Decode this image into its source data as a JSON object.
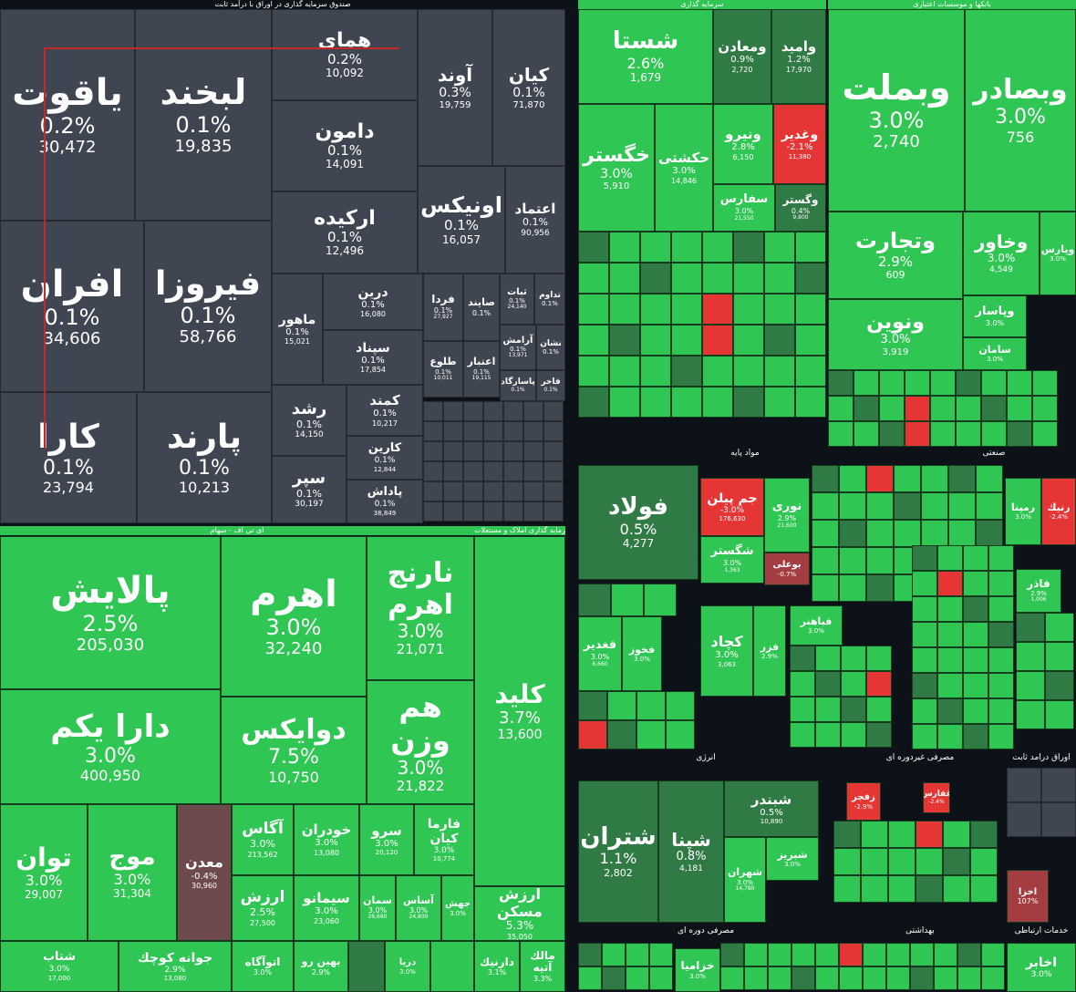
{
  "headers": {
    "fixed_income_fund": "صندوق سرمایه گذاری در اوراق با درآمد ثابت",
    "investment": "سرمایه گذاری",
    "banks": "بانکها و موسسات اعتباری",
    "etf": "ای تی اف - سهام",
    "housing_fund": "صندوق سرمایه گذاری املاک و مستغلات",
    "basic_materials": "مواد پایه",
    "industrial": "صنعتی",
    "energy": "انرژی",
    "durable_consumer": "مصرفی دوره ای",
    "nondurable_consumer": "مصرفی غیردوره ای",
    "health": "بهداشتی",
    "fixed_bonds": "اوراق درآمد ثابت",
    "telecom": "خدمات ارتباطی"
  },
  "tiles_left": [
    {
      "name": "ياقوت",
      "pct": "0.2%",
      "vol": "30,472"
    },
    {
      "name": "لبخند",
      "pct": "0.1%",
      "vol": "19,835"
    },
    {
      "name": "همای",
      "pct": "0.2%",
      "vol": "10,092"
    },
    {
      "name": "آوند",
      "pct": "0.3%",
      "vol": "19,759"
    },
    {
      "name": "كيان",
      "pct": "0.1%",
      "vol": "71,870"
    },
    {
      "name": "دامون",
      "pct": "0.1%",
      "vol": "14,091"
    },
    {
      "name": "اونيكس",
      "pct": "0.1%",
      "vol": "16,057"
    },
    {
      "name": "اعتماد",
      "pct": "0.1%",
      "vol": "90,956"
    },
    {
      "name": "اركيده",
      "pct": "0.1%",
      "vol": "12,496"
    },
    {
      "name": "افران",
      "pct": "0.1%",
      "vol": "34,606"
    },
    {
      "name": "فيروزا",
      "pct": "0.1%",
      "vol": "58,766"
    },
    {
      "name": "ماهور",
      "pct": "0.1%",
      "vol": "15,021"
    },
    {
      "name": "درين",
      "pct": "0.1%",
      "vol": "16,080"
    },
    {
      "name": "سپناد",
      "pct": "0.1%",
      "vol": "17,854"
    },
    {
      "name": "كارا",
      "pct": "0.1%",
      "vol": "23,794"
    },
    {
      "name": "پارند",
      "pct": "0.1%",
      "vol": "10,213"
    },
    {
      "name": "رشد",
      "pct": "0.1%",
      "vol": "14,150"
    },
    {
      "name": "كمند",
      "pct": "0.1%",
      "vol": "10,217"
    },
    {
      "name": "سپر",
      "pct": "0.1%",
      "vol": "30,197"
    },
    {
      "name": "كارين",
      "pct": "0.1%",
      "vol": "12,844"
    },
    {
      "name": "پاداش",
      "pct": "0.1%",
      "vol": "38,849"
    },
    {
      "name": "فردا",
      "pct": "0.1%",
      "vol": "27,927"
    },
    {
      "name": "صايند",
      "pct": "0.1%",
      "vol": ""
    },
    {
      "name": "ثبات",
      "pct": "0.1%",
      "vol": "24,140"
    },
    {
      "name": "تداوم",
      "pct": "0.1%",
      "vol": ""
    },
    {
      "name": "آرامش",
      "pct": "0.1%",
      "vol": "13,971"
    },
    {
      "name": "نشان",
      "pct": "0.1%",
      "vol": ""
    },
    {
      "name": "طلوع",
      "pct": "0.1%",
      "vol": "10,011"
    },
    {
      "name": "اعتبار",
      "pct": "0.1%",
      "vol": "19,115"
    },
    {
      "name": "پاسارگاد",
      "pct": "0.1%",
      "vol": ""
    },
    {
      "name": "فاخر",
      "pct": "0.1%",
      "vol": ""
    }
  ],
  "tiles_etf": [
    {
      "name": "پالايش",
      "pct": "2.5%",
      "vol": "205,030"
    },
    {
      "name": "اهرم",
      "pct": "3.0%",
      "vol": "32,240"
    },
    {
      "name": "نارنج اهرم",
      "pct": "3.0%",
      "vol": "21,071"
    },
    {
      "name": "كليد",
      "pct": "3.7%",
      "vol": "13,600"
    },
    {
      "name": "دارا يكم",
      "pct": "3.0%",
      "vol": "400,950"
    },
    {
      "name": "دوايكس",
      "pct": "7.5%",
      "vol": "10,750"
    },
    {
      "name": "هم وزن",
      "pct": "3.0%",
      "vol": "21,822"
    },
    {
      "name": "توان",
      "pct": "3.0%",
      "vol": "29,007"
    },
    {
      "name": "موج",
      "pct": "3.0%",
      "vol": "31,304"
    },
    {
      "name": "معدن",
      "pct": "-0.4%",
      "vol": "30,960"
    },
    {
      "name": "آگاس",
      "pct": "3.0%",
      "vol": "213,562"
    },
    {
      "name": "خودران",
      "pct": "3.0%",
      "vol": "13,080"
    },
    {
      "name": "سرو",
      "pct": "3.0%",
      "vol": "20,120"
    },
    {
      "name": "فارما كيان",
      "pct": "3.0%",
      "vol": "10,774"
    },
    {
      "name": "ارزش",
      "pct": "2.5%",
      "vol": "27,500"
    },
    {
      "name": "سيمانو",
      "pct": "3.0%",
      "vol": "23,060"
    },
    {
      "name": "سمان",
      "pct": "3.0%",
      "vol": "26,680"
    },
    {
      "name": "آساس",
      "pct": "3.0%",
      "vol": "24,800"
    },
    {
      "name": "جهش",
      "pct": "3.0%",
      "vol": ""
    },
    {
      "name": "ارزش مسكن",
      "pct": "5.3%",
      "vol": "35,050"
    },
    {
      "name": "شتاب",
      "pct": "3.0%",
      "vol": "17,000"
    },
    {
      "name": "جوانه كوچك",
      "pct": "2.9%",
      "vol": "13,080"
    },
    {
      "name": "اتوآگاه",
      "pct": "3.0%",
      "vol": ""
    },
    {
      "name": "بهين رو",
      "pct": "2.9%",
      "vol": ""
    },
    {
      "name": "دريا",
      "pct": "3.0%",
      "vol": ""
    },
    {
      "name": "دارنيك",
      "pct": "3.1%",
      "vol": ""
    },
    {
      "name": "مالك آتيه",
      "pct": "3.3%",
      "vol": ""
    }
  ],
  "tiles_right": [
    {
      "name": "شستا",
      "pct": "2.6%",
      "vol": "1,679"
    },
    {
      "name": "ومعادن",
      "pct": "0.9%",
      "vol": "2,720"
    },
    {
      "name": "واميد",
      "pct": "1.2%",
      "vol": "17,970"
    },
    {
      "name": "وبملت",
      "pct": "3.0%",
      "vol": "2,740"
    },
    {
      "name": "وبصادر",
      "pct": "3.0%",
      "vol": "756"
    },
    {
      "name": "خگستر",
      "pct": "3.0%",
      "vol": "5,910"
    },
    {
      "name": "حكشتى",
      "pct": "3.0%",
      "vol": "14,846"
    },
    {
      "name": "ونيرو",
      "pct": "2.8%",
      "vol": "6,150"
    },
    {
      "name": "وغدير",
      "pct": "-2.1%",
      "vol": "11,380"
    },
    {
      "name": "سفارس",
      "pct": "3.0%",
      "vol": "21,550"
    },
    {
      "name": "وگستر",
      "pct": "0.4%",
      "vol": "9,800"
    },
    {
      "name": "وتجارت",
      "pct": "2.9%",
      "vol": "609"
    },
    {
      "name": "وخاور",
      "pct": "3.0%",
      "vol": "4,549"
    },
    {
      "name": "وپارس",
      "pct": "3.0%",
      "vol": ""
    },
    {
      "name": "ونوين",
      "pct": "3.0%",
      "vol": "3,919"
    },
    {
      "name": "وپاسار",
      "pct": "3.0%",
      "vol": ""
    },
    {
      "name": "سامان",
      "pct": "3.0%",
      "vol": ""
    },
    {
      "name": "فولاد",
      "pct": "0.5%",
      "vol": "4,277"
    },
    {
      "name": "جم پيلن",
      "pct": "-3.0%",
      "vol": "176,630"
    },
    {
      "name": "نورى",
      "pct": "2.9%",
      "vol": "21,600"
    },
    {
      "name": "شگستر",
      "pct": "3.0%",
      "vol": "1,363"
    },
    {
      "name": "بوعلى",
      "pct": "-0.7%",
      "vol": ""
    },
    {
      "name": "رمپنا",
      "pct": "3.0%",
      "vol": ""
    },
    {
      "name": "رنيك",
      "pct": "-2.4%",
      "vol": ""
    },
    {
      "name": "فاذر",
      "pct": "2.9%",
      "vol": "1,006"
    },
    {
      "name": "فغدير",
      "pct": "3.0%",
      "vol": "6,660"
    },
    {
      "name": "فخوز",
      "pct": "3.0%",
      "vol": ""
    },
    {
      "name": "كچاد",
      "pct": "3.0%",
      "vol": "3,063"
    },
    {
      "name": "فزر",
      "pct": "2.9%",
      "vol": ""
    },
    {
      "name": "فباهنر",
      "pct": "3.0%",
      "vol": ""
    },
    {
      "name": "شتران",
      "pct": "1.1%",
      "vol": "2,802"
    },
    {
      "name": "شپنا",
      "pct": "0.8%",
      "vol": "4,181"
    },
    {
      "name": "شبندر",
      "pct": "0.5%",
      "vol": "10,890"
    },
    {
      "name": "شبريز",
      "pct": "3.0%",
      "vol": ""
    },
    {
      "name": "شهران",
      "pct": "3.0%",
      "vol": "14,780"
    },
    {
      "name": "زفجر",
      "pct": "-2.9%",
      "vol": ""
    },
    {
      "name": "غفارس",
      "pct": "-2.4%",
      "vol": ""
    },
    {
      "name": "اخزا",
      "pct": "107%",
      "vol": ""
    },
    {
      "name": "اخابر",
      "pct": "3.0%",
      "vol": ""
    },
    {
      "name": "خزاميا",
      "pct": "3.0%",
      "vol": ""
    }
  ]
}
